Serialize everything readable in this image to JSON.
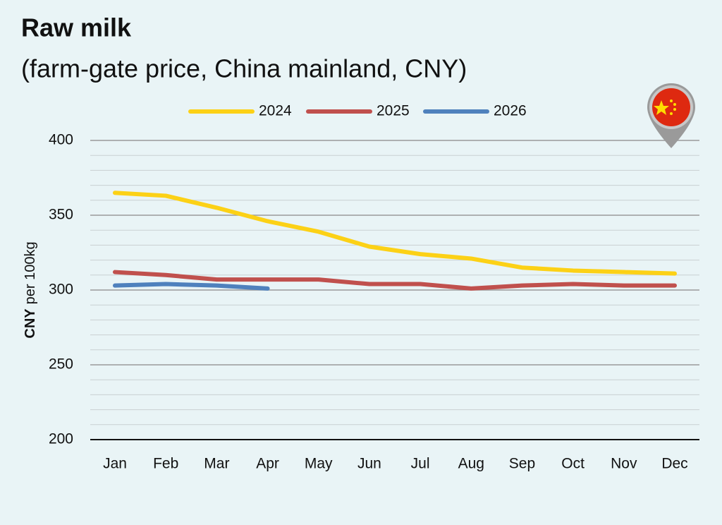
{
  "chart_data": {
    "type": "line",
    "title": "Raw milk",
    "subtitle": "(farm-gate price, China mainland, CNY)",
    "ylabel_unit": "CNY",
    "ylabel": "per 100kg",
    "categories": [
      "Jan",
      "Feb",
      "Mar",
      "Apr",
      "May",
      "Jun",
      "Jul",
      "Aug",
      "Sep",
      "Oct",
      "Nov",
      "Dec"
    ],
    "series": [
      {
        "name": "2024",
        "color": "#fcd116",
        "values": [
          365,
          363,
          355,
          346,
          339,
          329,
          324,
          321,
          315,
          313,
          312,
          311
        ]
      },
      {
        "name": "2025",
        "color": "#c0504d",
        "values": [
          312,
          310,
          307,
          307,
          307,
          304,
          304,
          301,
          303,
          304,
          303,
          303
        ]
      },
      {
        "name": "2026",
        "color": "#4f81bd",
        "values": [
          303,
          304,
          303,
          301,
          null,
          null,
          null,
          null,
          null,
          null,
          null,
          null
        ]
      }
    ],
    "ylim": [
      200,
      400
    ],
    "yticks": [
      200,
      250,
      300,
      350,
      400
    ],
    "minor_yticks": [
      210,
      220,
      230,
      240,
      260,
      270,
      280,
      290,
      310,
      320,
      330,
      340,
      360,
      370,
      380,
      390
    ],
    "grid": true,
    "legend": "top"
  }
}
